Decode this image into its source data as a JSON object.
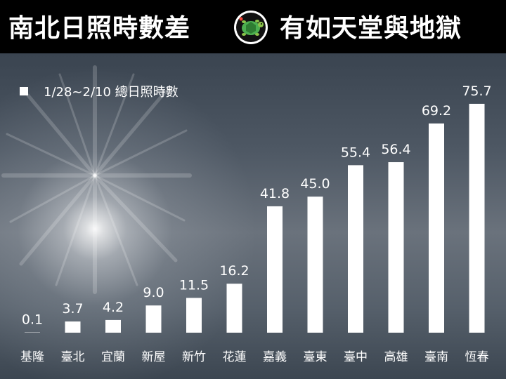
{
  "header": {
    "title_left": "南北日照時數差",
    "title_right": "有如天堂與地獄",
    "logo_icon": "turtle-logo-icon"
  },
  "colors": {
    "header_bg": "#000000",
    "bar": "#ffffff",
    "text": "#ffffff"
  },
  "chart_data": {
    "type": "bar",
    "categories": [
      "基隆",
      "臺北",
      "宜蘭",
      "新屋",
      "新竹",
      "花蓮",
      "嘉義",
      "臺東",
      "臺中",
      "高雄",
      "臺南",
      "恆春"
    ],
    "series": [
      {
        "name": "1/28~2/10 總日照時數",
        "values": [
          0.1,
          3.7,
          4.2,
          9.0,
          11.5,
          16.2,
          41.8,
          45.0,
          55.4,
          56.4,
          69.2,
          75.7
        ],
        "labels": [
          "0.1",
          "3.7",
          "4.2",
          "9.0",
          "11.5",
          "16.2",
          "41.8",
          "45.0",
          "55.4",
          "56.4",
          "69.2",
          "75.7"
        ]
      }
    ],
    "title": "",
    "xlabel": "",
    "ylabel": "",
    "ylim": [
      0,
      80
    ],
    "grid": false,
    "legend_position": "top-left"
  }
}
